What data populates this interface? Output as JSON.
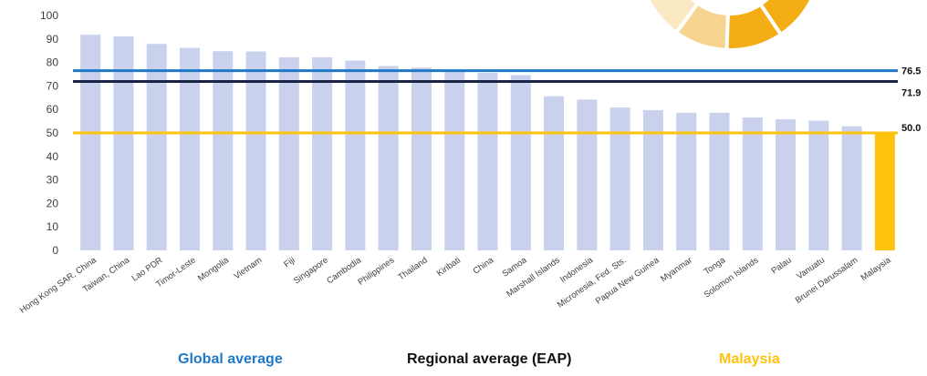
{
  "chart_data": {
    "type": "bar",
    "ylim": [
      0,
      100
    ],
    "yticks": [
      0,
      10,
      20,
      30,
      40,
      50,
      60,
      70,
      80,
      90,
      100
    ],
    "grid": false,
    "categories": [
      "Hong Kong SAR, China",
      "Taiwan, China",
      "Lao PDR",
      "Timor-Leste",
      "Mongolia",
      "Vietnam",
      "Fiji",
      "Singapore",
      "Cambodia",
      "Philippines",
      "Thailand",
      "Kiribati",
      "China",
      "Samoa",
      "Marshall Islands",
      "Indonesia",
      "Micronesia, Fed. Sts.",
      "Papua New Guinea",
      "Myanmar",
      "Tonga",
      "Solomon Islands",
      "Palau",
      "Vanuatu",
      "Brunei Darussalam",
      "Malaysia"
    ],
    "values": [
      91.8,
      91.1,
      87.9,
      86.2,
      84.8,
      84.7,
      82.2,
      82.2,
      80.8,
      78.5,
      77.8,
      76.2,
      75.6,
      74.6,
      65.6,
      64.2,
      60.8,
      59.7,
      58.6,
      58.6,
      56.6,
      55.8,
      55.2,
      52.8,
      50.0
    ],
    "bar_color": "#c9d1ec",
    "highlight": {
      "category": "Malaysia",
      "color": "#ffc20e"
    },
    "reference_lines": [
      {
        "name": "Global average",
        "value": 76.5,
        "label": "76.5",
        "color": "#1e78c8"
      },
      {
        "name": "Regional average (EAP)",
        "value": 71.9,
        "label": "71.9",
        "color": "#1c2445"
      },
      {
        "name": "Malaysia",
        "value": 50.0,
        "label": "50.0",
        "color": "#ffc20e"
      }
    ],
    "legend": [
      {
        "label": "Global average",
        "color": "#1e78c8"
      },
      {
        "label": "Regional average (EAP)",
        "color": "#111111"
      },
      {
        "label": "Malaysia",
        "color": "#ffc20e"
      }
    ],
    "legend_position": "bottom"
  },
  "decoration": {
    "donut_colors": [
      "#fbe9c4",
      "#f7d590",
      "#f5ad16",
      "#f5ad16"
    ]
  }
}
